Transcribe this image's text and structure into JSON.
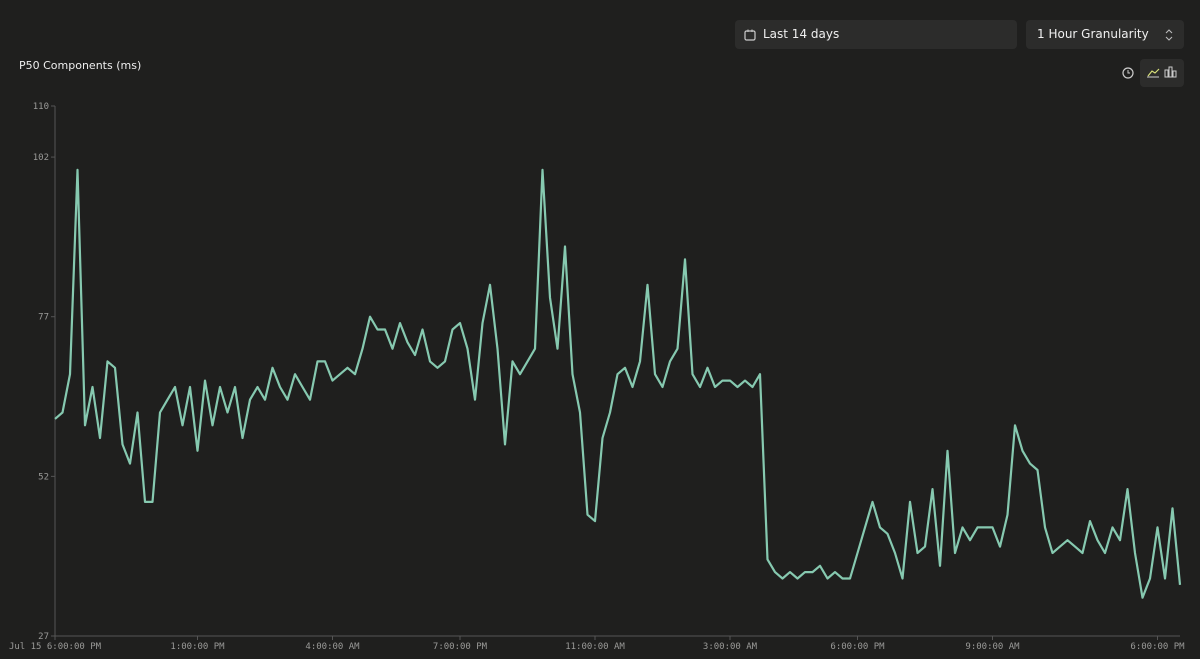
{
  "header": {
    "date_range": "Last 14 days",
    "granularity": "1 Hour Granularity"
  },
  "chart_data": {
    "type": "line",
    "title": "P50 Components (ms)",
    "color": "#86c9b0",
    "categories": [
      "Jul 15 6:00:00 PM",
      null,
      null,
      null,
      null,
      null,
      null,
      null,
      null,
      null,
      null,
      null,
      null,
      null,
      null,
      null,
      null,
      null,
      null,
      "1:00:00 PM",
      null,
      null,
      null,
      null,
      null,
      null,
      null,
      null,
      null,
      null,
      null,
      null,
      null,
      null,
      null,
      null,
      null,
      "4:00:00 AM",
      null,
      null,
      null,
      null,
      null,
      null,
      null,
      null,
      null,
      null,
      null,
      null,
      null,
      null,
      null,
      null,
      "7:00:00 PM",
      null,
      null,
      null,
      null,
      null,
      null,
      null,
      null,
      null,
      null,
      null,
      null,
      null,
      null,
      null,
      null,
      null,
      "11:00:00 AM",
      null,
      null,
      null,
      null,
      null,
      null,
      null,
      null,
      null,
      null,
      null,
      null,
      null,
      null,
      null,
      null,
      null,
      "3:00:00 AM",
      null,
      null,
      null,
      null,
      null,
      null,
      null,
      null,
      null,
      null,
      null,
      null,
      null,
      null,
      null,
      null,
      "6:00:00 PM",
      null,
      null,
      null,
      null,
      null,
      null,
      null,
      null,
      null,
      null,
      null,
      null,
      null,
      null,
      null,
      null,
      null,
      "9:00:00 AM",
      null,
      null,
      null,
      null,
      null,
      null,
      null,
      null,
      null,
      null,
      null,
      null,
      null,
      null,
      null,
      null,
      null,
      null,
      null,
      null,
      null,
      "6:00:00 PM",
      null,
      null,
      null
    ],
    "values": [
      61,
      62,
      68,
      100,
      60,
      66,
      58,
      70,
      69,
      57,
      54,
      62,
      48,
      48,
      62,
      64,
      66,
      60,
      66,
      56,
      67,
      60,
      66,
      62,
      66,
      58,
      64,
      66,
      64,
      69,
      66,
      64,
      68,
      66,
      64,
      70,
      70,
      67,
      68,
      69,
      68,
      72,
      77,
      75,
      75,
      72,
      76,
      73,
      71,
      75,
      70,
      69,
      70,
      75,
      76,
      72,
      64,
      76,
      82,
      72,
      57,
      70,
      68,
      70,
      72,
      100,
      80,
      72,
      88,
      68,
      62,
      46,
      45,
      58,
      62,
      68,
      69,
      66,
      70,
      82,
      68,
      66,
      70,
      72,
      86,
      68,
      66,
      69,
      66,
      67,
      67,
      66,
      67,
      66,
      68,
      39,
      37,
      36,
      37,
      36,
      37,
      37,
      38,
      36,
      37,
      36,
      36,
      40,
      44,
      48,
      44,
      43,
      40,
      36,
      48,
      40,
      41,
      50,
      38,
      56,
      40,
      44,
      42,
      44,
      44,
      44,
      41,
      46,
      60,
      56,
      54,
      53,
      44,
      40,
      41,
      42,
      41,
      40,
      45,
      42,
      40,
      44,
      42,
      50,
      40,
      33,
      36,
      44,
      36,
      47,
      35
    ],
    "ylim": [
      27,
      110
    ],
    "yticks": [
      27,
      52,
      77,
      102,
      110
    ]
  }
}
